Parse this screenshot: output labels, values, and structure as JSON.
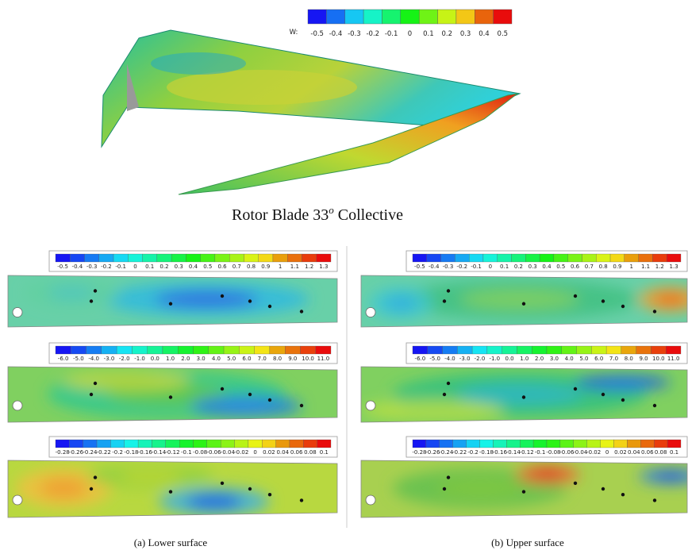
{
  "top_colorbar": {
    "label": "W:",
    "ticks": [
      "-0.5",
      "-0.4",
      "-0.3",
      "-0.2",
      "-0.1",
      "0",
      "0.1",
      "0.2",
      "0.3",
      "0.4",
      "0.5"
    ]
  },
  "top_caption": {
    "text": "Rotor Blade 33",
    "superscript": "o",
    "text_after": "Collective"
  },
  "panels": [
    {
      "caption": "(a) Lower surface",
      "colorbars": [
        {
          "ticks": [
            "-0.5",
            "-0.4",
            "-0.3",
            "-0.2",
            "-0.1",
            "0",
            "0.1",
            "0.2",
            "0.3",
            "0.4",
            "0.5",
            "0.6",
            "0.7",
            "0.8",
            "0.9",
            "1",
            "1.1",
            "1.2",
            "1.3"
          ]
        },
        {
          "ticks": [
            "-6.0",
            "-5.0",
            "-4.0",
            "-3.0",
            "-2.0",
            "-1.0",
            "0.0",
            "1.0",
            "2.0",
            "3.0",
            "4.0",
            "5.0",
            "6.0",
            "7.0",
            "8.0",
            "9.0",
            "10.0",
            "11.0"
          ]
        },
        {
          "ticks": [
            "-0.28",
            "-0.26",
            "-0.24",
            "-0.22",
            "-0.2",
            "-0.18",
            "-0.16",
            "-0.14",
            "-0.12",
            "-0.1",
            "-0.08",
            "-0.06",
            "-0.04",
            "-0.02",
            "0",
            "0.02",
            "0.04",
            "0.06",
            "0.08",
            "0.1"
          ]
        }
      ]
    },
    {
      "caption": "(b) Upper surface",
      "colorbars": [
        {
          "ticks": [
            "-0.5",
            "-0.4",
            "-0.3",
            "-0.2",
            "-0.1",
            "0",
            "0.1",
            "0.2",
            "0.3",
            "0.4",
            "0.5",
            "0.6",
            "0.7",
            "0.8",
            "0.9",
            "1",
            "1.1",
            "1.2",
            "1.3"
          ]
        },
        {
          "ticks": [
            "-6.0",
            "-5.0",
            "-4.0",
            "-3.0",
            "-2.0",
            "-1.0",
            "0.0",
            "1.0",
            "2.0",
            "3.0",
            "4.0",
            "5.0",
            "6.0",
            "7.0",
            "8.0",
            "9.0",
            "10.0",
            "11.0"
          ]
        },
        {
          "ticks": [
            "-0.28",
            "-0.26",
            "-0.24",
            "-0.22",
            "-0.2",
            "-0.18",
            "-0.16",
            "-0.14",
            "-0.12",
            "-0.1",
            "-0.08",
            "-0.06",
            "-0.04",
            "-0.02",
            "0",
            "0.02",
            "0.04",
            "0.06",
            "0.08",
            "0.1"
          ]
        }
      ]
    }
  ]
}
